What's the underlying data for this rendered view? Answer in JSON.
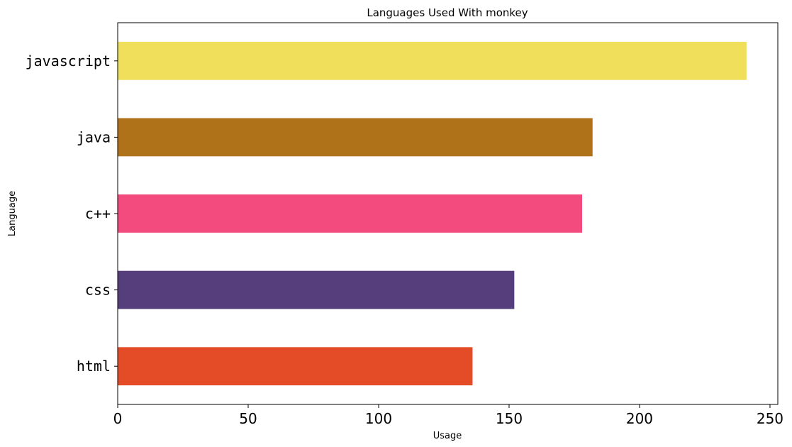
{
  "chart_data": {
    "type": "bar",
    "orientation": "horizontal",
    "title": "Languages Used With monkey",
    "xlabel": "Usage",
    "ylabel": "Language",
    "categories": [
      "javascript",
      "java",
      "c++",
      "css",
      "html"
    ],
    "values": [
      241,
      182,
      178,
      152,
      136
    ],
    "colors": [
      "#f0df5b",
      "#b07219",
      "#f34b7d",
      "#563d7c",
      "#e34c26"
    ],
    "xlim": [
      0,
      253
    ],
    "xticks": [
      0,
      50,
      100,
      150,
      200,
      250
    ],
    "grid": false,
    "legend": "none"
  }
}
